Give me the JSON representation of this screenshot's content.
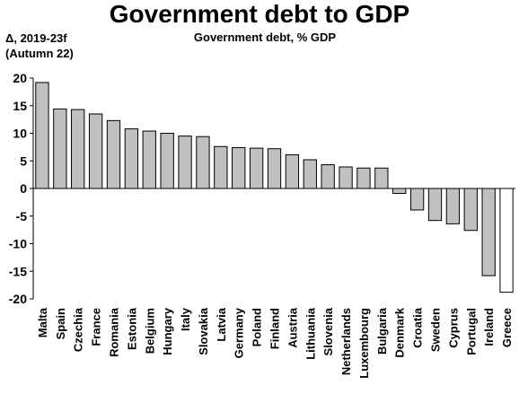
{
  "chart_data": {
    "type": "bar",
    "title": "Government debt to GDP",
    "subtitle": "Government debt, % GDP",
    "ylabel_line1": "Δ, 2019-23f",
    "ylabel_line2": "(Autumn 22)",
    "xlabel": "",
    "ylim": [
      -20,
      20
    ],
    "yticks": [
      20,
      15,
      10,
      5,
      0,
      -5,
      -10,
      -15,
      -20
    ],
    "categories": [
      "Malta",
      "Spain",
      "Czechia",
      "France",
      "Romania",
      "Estonia",
      "Belgium",
      "Hungary",
      "Italy",
      "Slovakia",
      "Latvia",
      "Germany",
      "Poland",
      "Finland",
      "Austria",
      "Lithuania",
      "Slovenia",
      "Netherlands",
      "Luxembourg",
      "Bulgaria",
      "Denmark",
      "Croatia",
      "Sweden",
      "Cyprus",
      "Portugal",
      "Ireland",
      "Greece"
    ],
    "values": [
      19.2,
      14.4,
      14.3,
      13.5,
      12.3,
      10.8,
      10.4,
      10.0,
      9.5,
      9.4,
      7.6,
      7.4,
      7.3,
      7.2,
      6.1,
      5.2,
      4.3,
      3.9,
      3.7,
      3.7,
      -0.9,
      -3.9,
      -5.8,
      -6.4,
      -7.6,
      -15.8,
      -18.8
    ],
    "bar_colors": [
      "#c0c0c0",
      "#c0c0c0",
      "#c0c0c0",
      "#c0c0c0",
      "#c0c0c0",
      "#c0c0c0",
      "#c0c0c0",
      "#c0c0c0",
      "#c0c0c0",
      "#c0c0c0",
      "#c0c0c0",
      "#c0c0c0",
      "#c0c0c0",
      "#c0c0c0",
      "#c0c0c0",
      "#c0c0c0",
      "#c0c0c0",
      "#c0c0c0",
      "#c0c0c0",
      "#c0c0c0",
      "#c0c0c0",
      "#c0c0c0",
      "#c0c0c0",
      "#c0c0c0",
      "#c0c0c0",
      "#c0c0c0",
      "#ffffff"
    ],
    "grid": false,
    "legend": "none"
  }
}
